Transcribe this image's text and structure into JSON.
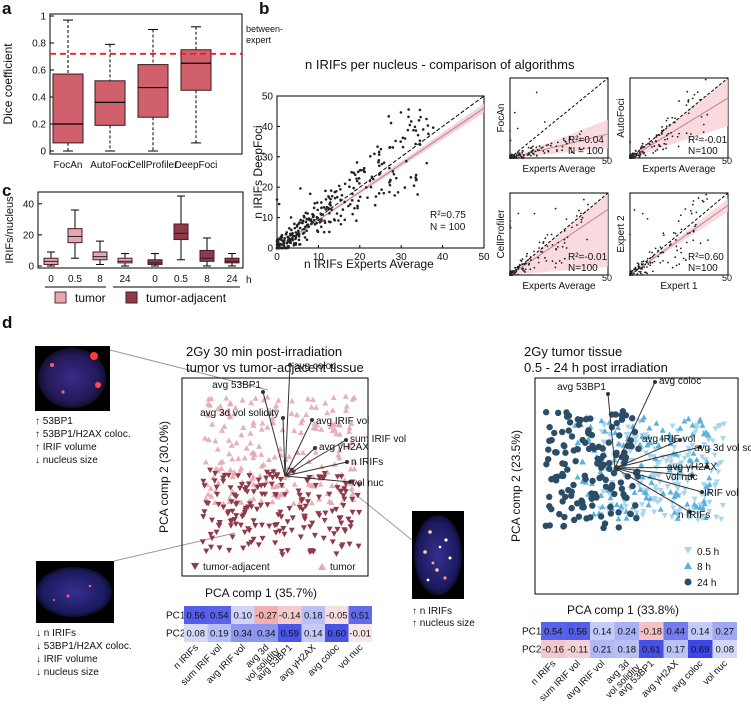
{
  "panel_labels": {
    "a": "a",
    "b": "b",
    "c": "c",
    "d": "d"
  },
  "colors": {
    "box": "#d0606c",
    "boxDark": "#9c3f4c",
    "tumor": "#e3a8b1",
    "adjacent": "#8e3a48",
    "dashRed": "#e8202a",
    "pink": "#c98896",
    "blue": "#2f4bd6",
    "red": "#e45555",
    "lightBlue": "#a8d6ee",
    "darkBlue": "#2b4d66"
  },
  "chart_data": [
    {
      "id": "a",
      "type": "box",
      "ylabel": "Dice coefficient",
      "ylim": [
        0,
        1
      ],
      "yticks": [
        "0",
        "0.2",
        "0.4",
        "0.6",
        "0.8",
        "1"
      ],
      "categories": [
        "FocAn",
        "AutoFoci",
        "CellProfiler",
        "DeepFoci"
      ],
      "boxes": [
        {
          "min": 0.0,
          "q1": 0.06,
          "median": 0.2,
          "q3": 0.57,
          "max": 0.97
        },
        {
          "min": 0.0,
          "q1": 0.19,
          "median": 0.36,
          "q3": 0.52,
          "max": 0.79
        },
        {
          "min": 0.0,
          "q1": 0.25,
          "median": 0.47,
          "q3": 0.64,
          "max": 0.9
        },
        {
          "min": 0.06,
          "q1": 0.45,
          "median": 0.65,
          "q3": 0.75,
          "max": 0.92
        }
      ],
      "reference": {
        "value": 0.72,
        "label_line1": "between-",
        "label_line2": "expert"
      }
    },
    {
      "id": "b_main",
      "type": "scatter",
      "title": "n IRIFs per nucleus - comparison of algorithms",
      "xlabel": "n IRIFs Experts Average",
      "ylabel": "n IRIFs DeepFoci",
      "xlim": [
        0,
        50
      ],
      "ylim": [
        0,
        50
      ],
      "xticks": [
        "0",
        "10",
        "20",
        "30",
        "40",
        "50"
      ],
      "yticks": [
        "0",
        "10",
        "20",
        "30",
        "40",
        "50"
      ],
      "r2": "R²=0.75",
      "n": "N = 100",
      "slope": 0.92
    },
    {
      "id": "b_focan",
      "type": "scatter",
      "xlabel": "Experts Average",
      "ylabel": "FocAn",
      "xmax": "50",
      "r2": "R²=0.04",
      "n": "N = 100",
      "slope": 0.3,
      "band": 0.18
    },
    {
      "id": "b_autofoci",
      "type": "scatter",
      "xlabel": "Experts Average",
      "ylabel": "AutoFoci",
      "xmax": "50",
      "r2": "R²=-0.01",
      "n": "N=100",
      "slope": 0.75,
      "band": 0.35
    },
    {
      "id": "b_cellprofiler",
      "type": "scatter",
      "xlabel": "Experts Average",
      "ylabel": "CellProfiler",
      "xmax": "50",
      "r2": "R²=-0.01",
      "n": "N=100",
      "slope": 0.8,
      "band": 0.7
    },
    {
      "id": "b_expert",
      "type": "scatter",
      "xlabel": "Expert 1",
      "ylabel": "Expert 2",
      "xmax": "50",
      "r2": "R²=0.60",
      "n": "N=100",
      "slope": 0.85,
      "band": 0.08
    },
    {
      "id": "c",
      "type": "box",
      "ylabel": "IRIFs/nucleus",
      "ylim": [
        0,
        45
      ],
      "yticks": [
        "0",
        "20",
        "40"
      ],
      "xticks": [
        "0",
        "0.5",
        "8",
        "24",
        "0",
        "0.5",
        "8",
        "24"
      ],
      "xunit": "h",
      "legend": [
        "tumor",
        "tumor-adjacent"
      ],
      "boxes": [
        {
          "group": "tumor",
          "min": 0,
          "q1": 1,
          "median": 3,
          "q3": 5,
          "max": 9
        },
        {
          "group": "tumor",
          "min": 5,
          "q1": 15,
          "median": 19,
          "q3": 24,
          "max": 36
        },
        {
          "group": "tumor",
          "min": 1,
          "q1": 4,
          "median": 6,
          "q3": 9,
          "max": 16
        },
        {
          "group": "tumor",
          "min": 0,
          "q1": 2,
          "median": 3,
          "q3": 5,
          "max": 8
        },
        {
          "group": "tumor-adjacent",
          "min": 0,
          "q1": 1,
          "median": 2,
          "q3": 4,
          "max": 8
        },
        {
          "group": "tumor-adjacent",
          "min": 4,
          "q1": 17,
          "median": 21,
          "q3": 27,
          "max": 45
        },
        {
          "group": "tumor-adjacent",
          "min": 0,
          "q1": 3,
          "median": 5,
          "q3": 10,
          "max": 18
        },
        {
          "group": "tumor-adjacent",
          "min": 0,
          "q1": 2,
          "median": 3,
          "q3": 5,
          "max": 8
        }
      ]
    },
    {
      "id": "d_left",
      "type": "scatter",
      "title_line1": "2Gy 30 min post-irradiation",
      "title_line2": "tumor vs tumor-adjacent tissue",
      "xlabel": "PCA comp 1  (35.7%)",
      "ylabel": "PCA comp 2  (30.0%)",
      "legend": [
        "tumor-adjacent",
        "tumor"
      ],
      "loadings": [
        "avg 53BP1",
        "avg coloc",
        "avg 3d vol solidity",
        "avg IRIF vol",
        "sum IRIF vol",
        "avg γH2AX",
        "n IRIFs",
        "vol nuc"
      ]
    },
    {
      "id": "d_left_heat",
      "type": "heatmap",
      "rows": [
        "PC1",
        "PC2"
      ],
      "columns": [
        "n IRIFs",
        "sum IRIF vol",
        "avg IRIF vol",
        "avg 3d vol solidity",
        "avg 53BP1",
        "avg γH2AX",
        "avg coloc",
        "vol nuc"
      ],
      "column_lines": [
        [
          "n IRIFs"
        ],
        [
          "sum IRIF vol"
        ],
        [
          "avg IRIF vol"
        ],
        [
          "avg 3d",
          "vol solidity"
        ],
        [
          "avg 53BP1"
        ],
        [
          "avg γH2AX"
        ],
        [
          "avg coloc"
        ],
        [
          "vol nuc"
        ]
      ],
      "values": [
        [
          0.56,
          0.54,
          0.1,
          -0.27,
          -0.14,
          0.18,
          -0.05,
          0.51
        ],
        [
          0.08,
          0.19,
          0.34,
          0.34,
          0.59,
          0.14,
          0.6,
          -0.01
        ]
      ],
      "labels": [
        [
          "0.56",
          "0.54",
          "0.10",
          "-0.27",
          "-0.14",
          "0.18",
          "-0.05",
          "0.51"
        ],
        [
          "0.08",
          "0.19",
          "0.34",
          "0.34",
          "0.59",
          "0.14",
          "0.60",
          "-0.01"
        ]
      ]
    },
    {
      "id": "d_right",
      "type": "scatter",
      "title_line1": "2Gy tumor tissue",
      "title_line2": "0.5 - 24 h post irradiation",
      "xlabel": "PCA comp 1  (33.8%)",
      "ylabel": "PCA comp 2  (23.5%)",
      "legend": [
        "0.5 h",
        "8 h",
        "24 h"
      ],
      "loadings": [
        "avg 53BP1",
        "avg coloc",
        "avg IRIF vol",
        "avg 3d vol solidity",
        "avg γH2AX",
        "vol nuc",
        "IRIF vol",
        "n IRIFs"
      ]
    },
    {
      "id": "d_right_heat",
      "type": "heatmap",
      "rows": [
        "PC1",
        "PC2"
      ],
      "columns": [
        "n IRIFs",
        "sum IRIF vol",
        "avg IRIF vol",
        "avg 3d vol solidity",
        "avg 53BP1",
        "avg γH2AX",
        "avg coloc",
        "vol nuc"
      ],
      "column_lines": [
        [
          "n IRIFs"
        ],
        [
          "sum IRIF vol"
        ],
        [
          "avg IRIF vol"
        ],
        [
          "avg 3d",
          "vol solidity"
        ],
        [
          "avg 53BP1"
        ],
        [
          "avg γH2AX"
        ],
        [
          "avg coloc"
        ],
        [
          "vol nuc"
        ]
      ],
      "values": [
        [
          0.54,
          0.56,
          0.14,
          0.24,
          -0.18,
          0.44,
          0.14,
          0.27
        ],
        [
          -0.16,
          -0.11,
          0.21,
          0.18,
          0.61,
          0.17,
          0.69,
          0.08
        ]
      ],
      "labels": [
        [
          "0.54",
          "0.56",
          "0.14",
          "0.24",
          "-0.18",
          "0.44",
          "0.14",
          "0.27"
        ],
        [
          "-0.16",
          "-0.11",
          "0.21",
          "0.18",
          "0.61",
          "0.17",
          "0.69",
          "0.08"
        ]
      ]
    }
  ],
  "cell_notes": {
    "top_left": [
      "↑ 53BP1",
      "↑ 53BP1/H2AX coloc.",
      "↑ IRIF volume",
      "↓ nucleus size"
    ],
    "bottom_left": [
      "↓ n IRIFs",
      "↓ 53BP1/H2AX coloc.",
      "↓ IRIF volume",
      "↓ nucleus size"
    ],
    "middle": [
      "↑ n IRIFs",
      "↑ nucleus size"
    ]
  }
}
